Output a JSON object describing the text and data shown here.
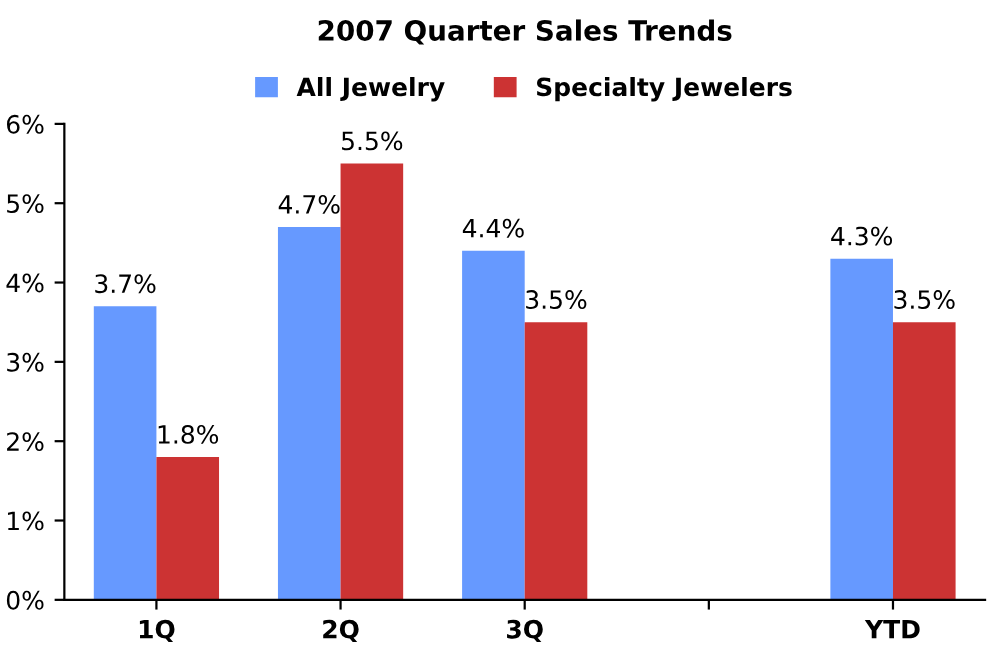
{
  "chart_data": {
    "type": "bar",
    "title": "2007 Quarter Sales Trends",
    "categories": [
      "1Q",
      "2Q",
      "3Q",
      null,
      "YTD"
    ],
    "series": [
      {
        "name": "All Jewelry",
        "color": "#6699ff",
        "values": [
          3.7,
          4.7,
          4.4,
          null,
          4.3
        ],
        "value_labels": [
          "3.7%",
          "4.7%",
          "4.4%",
          null,
          "4.3%"
        ]
      },
      {
        "name": "Specialty Jewelers",
        "color": "#cc3333",
        "values": [
          1.8,
          5.5,
          3.5,
          null,
          3.5
        ],
        "value_labels": [
          "1.8%",
          "5.5%",
          "3.5%",
          null,
          "3.5%"
        ]
      }
    ],
    "ylim": [
      0,
      6
    ],
    "yticks": [
      {
        "value": 0,
        "label": "0%"
      },
      {
        "value": 1,
        "label": "1%"
      },
      {
        "value": 2,
        "label": "2%"
      },
      {
        "value": 3,
        "label": "3%"
      },
      {
        "value": 4,
        "label": "4%"
      },
      {
        "value": 5,
        "label": "5%"
      },
      {
        "value": 6,
        "label": "6%"
      }
    ],
    "grid": false,
    "legend": "top"
  }
}
